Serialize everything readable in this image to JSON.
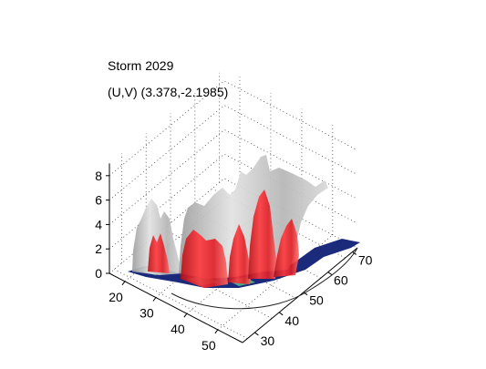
{
  "chart_data": {
    "type": "surface3d",
    "title_lines": [
      "Storm 2029",
      "(U,V) (3.378,-2.1985)"
    ],
    "xlabel": "",
    "ylabel": "",
    "zlabel": "",
    "x_ticks": [
      20,
      30,
      40,
      50
    ],
    "y_ticks": [
      30,
      40,
      50,
      60,
      70
    ],
    "z_ticks": [
      0,
      2,
      4,
      6,
      8
    ],
    "xlim": [
      15,
      58
    ],
    "ylim": [
      25,
      72
    ],
    "zlim": [
      0,
      9
    ],
    "grid": true,
    "colors": {
      "outer_isosurface": "#bdbdbd",
      "inner_isosurface": "#e8202a",
      "ground_layer": "#1b2a7a",
      "ground_highlight": "#4fa88a"
    }
  }
}
